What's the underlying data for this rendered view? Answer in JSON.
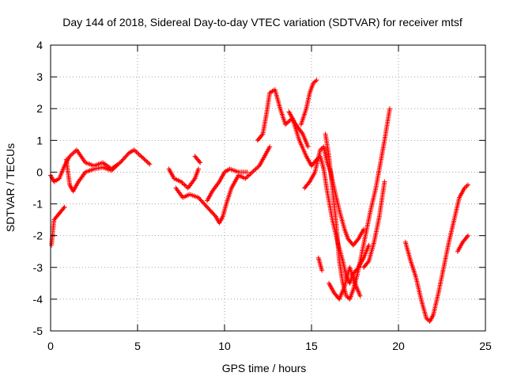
{
  "chart_data": {
    "type": "scatter",
    "title": "Day 144 of 2018, Sidereal Day-to-day VTEC variation (SDTVAR) for receiver mtsf",
    "xlabel": "GPS time / hours",
    "ylabel": "SDTVAR / TECUs",
    "xlim": [
      0,
      25
    ],
    "ylim": [
      -5,
      4
    ],
    "x_ticks": [
      0,
      5,
      10,
      15,
      20,
      25
    ],
    "y_ticks": [
      -5,
      -4,
      -3,
      -2,
      -1,
      0,
      1,
      2,
      3,
      4
    ],
    "grid": true,
    "legend": "none",
    "marker": "plus",
    "series": [
      {
        "color": "#ff0000",
        "tracks": [
          [
            [
              0.0,
              -0.1
            ],
            [
              0.2,
              -0.3
            ],
            [
              0.5,
              -0.2
            ],
            [
              0.8,
              0.2
            ],
            [
              1.1,
              0.5
            ],
            [
              1.5,
              0.7
            ],
            [
              2.0,
              0.3
            ],
            [
              2.5,
              0.2
            ],
            [
              3.0,
              0.3
            ],
            [
              3.5,
              0.1
            ],
            [
              4.0,
              0.3
            ],
            [
              4.5,
              0.6
            ],
            [
              4.8,
              0.7
            ],
            [
              5.2,
              0.5
            ],
            [
              5.7,
              0.25
            ]
          ],
          [
            [
              0.05,
              -2.3
            ],
            [
              0.2,
              -1.5
            ],
            [
              0.5,
              -1.3
            ],
            [
              0.8,
              -1.1
            ]
          ],
          [
            [
              0.9,
              0.4
            ],
            [
              1.1,
              -0.4
            ],
            [
              1.3,
              -0.6
            ],
            [
              1.6,
              -0.3
            ],
            [
              2.0,
              0.0
            ],
            [
              2.5,
              0.1
            ],
            [
              3.0,
              0.15
            ],
            [
              3.5,
              0.05
            ],
            [
              3.8,
              0.2
            ]
          ],
          [
            [
              6.8,
              0.1
            ],
            [
              7.1,
              -0.2
            ],
            [
              7.5,
              -0.3
            ],
            [
              7.9,
              -0.5
            ],
            [
              8.3,
              -0.2
            ],
            [
              8.5,
              0.1
            ]
          ],
          [
            [
              7.2,
              -0.5
            ],
            [
              7.6,
              -0.8
            ],
            [
              8.0,
              -0.7
            ],
            [
              8.5,
              -0.8
            ],
            [
              9.0,
              -1.1
            ],
            [
              9.5,
              -1.4
            ],
            [
              9.7,
              -1.6
            ],
            [
              9.9,
              -1.4
            ],
            [
              10.1,
              -1.0
            ],
            [
              10.4,
              -0.5
            ],
            [
              10.8,
              -0.1
            ],
            [
              11.2,
              -0.2
            ],
            [
              11.6,
              0.0
            ],
            [
              12.0,
              0.2
            ],
            [
              12.4,
              0.6
            ],
            [
              12.6,
              0.8
            ]
          ],
          [
            [
              9.0,
              -0.9
            ],
            [
              9.3,
              -0.6
            ],
            [
              9.7,
              -0.3
            ],
            [
              10.0,
              0.0
            ],
            [
              10.3,
              0.1
            ],
            [
              10.8,
              0.0
            ],
            [
              11.3,
              0.0
            ]
          ],
          [
            [
              8.3,
              0.5
            ],
            [
              8.6,
              0.3
            ]
          ],
          [
            [
              11.9,
              1.0
            ],
            [
              12.2,
              1.2
            ],
            [
              12.4,
              1.8
            ],
            [
              12.6,
              2.5
            ],
            [
              12.9,
              2.6
            ],
            [
              13.2,
              2.0
            ],
            [
              13.5,
              1.5
            ],
            [
              13.9,
              1.7
            ],
            [
              14.3,
              1.0
            ],
            [
              14.7,
              0.5
            ],
            [
              15.0,
              0.2
            ],
            [
              15.3,
              0.4
            ],
            [
              15.5,
              0.5
            ],
            [
              15.7,
              0.1
            ],
            [
              15.9,
              -0.6
            ],
            [
              16.2,
              -1.5
            ],
            [
              16.5,
              -2.2
            ],
            [
              16.8,
              -2.8
            ],
            [
              17.0,
              -3.3
            ],
            [
              17.2,
              -3.5
            ],
            [
              17.4,
              -3.2
            ],
            [
              17.7,
              -3.0
            ],
            [
              18.0,
              -2.7
            ],
            [
              18.3,
              -2.3
            ]
          ],
          [
            [
              14.4,
              1.5
            ],
            [
              14.7,
              2.0
            ],
            [
              14.9,
              2.5
            ],
            [
              15.1,
              2.8
            ],
            [
              15.3,
              2.9
            ]
          ],
          [
            [
              13.7,
              1.9
            ],
            [
              14.1,
              1.5
            ],
            [
              14.5,
              1.2
            ],
            [
              14.8,
              0.8
            ]
          ],
          [
            [
              14.6,
              -0.5
            ],
            [
              14.9,
              -0.3
            ],
            [
              15.2,
              0.0
            ],
            [
              15.5,
              0.7
            ],
            [
              15.7,
              0.8
            ],
            [
              15.9,
              0.3
            ],
            [
              16.1,
              0.0
            ],
            [
              16.3,
              -0.5
            ],
            [
              16.6,
              -1.2
            ],
            [
              16.9,
              -1.8
            ],
            [
              17.1,
              -2.1
            ],
            [
              17.4,
              -2.3
            ],
            [
              17.7,
              -2.1
            ],
            [
              18.0,
              -1.8
            ]
          ],
          [
            [
              15.4,
              -2.7
            ],
            [
              15.6,
              -3.1
            ]
          ],
          [
            [
              15.8,
              1.2
            ],
            [
              16.0,
              0.5
            ],
            [
              16.2,
              -0.5
            ],
            [
              16.4,
              -1.5
            ],
            [
              16.6,
              -2.8
            ],
            [
              16.8,
              -3.5
            ],
            [
              17.0,
              -3.9
            ],
            [
              17.2,
              -4.0
            ],
            [
              17.4,
              -3.7
            ],
            [
              17.6,
              -3.3
            ],
            [
              17.8,
              -2.8
            ],
            [
              18.1,
              -2.0
            ],
            [
              18.4,
              -1.2
            ],
            [
              18.7,
              -0.5
            ],
            [
              19.0,
              0.4
            ],
            [
              19.2,
              1.0
            ],
            [
              19.5,
              2.0
            ]
          ],
          [
            [
              16.0,
              -3.5
            ],
            [
              16.3,
              -3.8
            ],
            [
              16.6,
              -4.0
            ],
            [
              16.9,
              -3.6
            ],
            [
              17.2,
              -3.0
            ],
            [
              17.5,
              -3.5
            ],
            [
              17.8,
              -3.9
            ]
          ],
          [
            [
              18.0,
              -3.0
            ],
            [
              18.3,
              -2.8
            ],
            [
              18.6,
              -2.2
            ],
            [
              18.9,
              -1.4
            ],
            [
              19.2,
              -0.3
            ]
          ],
          [
            [
              20.4,
              -2.2
            ],
            [
              20.7,
              -2.8
            ],
            [
              21.0,
              -3.3
            ],
            [
              21.3,
              -4.0
            ],
            [
              21.6,
              -4.6
            ],
            [
              21.8,
              -4.7
            ],
            [
              22.0,
              -4.5
            ],
            [
              22.3,
              -3.8
            ],
            [
              22.6,
              -3.0
            ],
            [
              22.9,
              -2.2
            ],
            [
              23.2,
              -1.5
            ],
            [
              23.5,
              -0.8
            ],
            [
              23.8,
              -0.5
            ],
            [
              24.0,
              -0.4
            ]
          ],
          [
            [
              23.4,
              -2.5
            ],
            [
              23.7,
              -2.2
            ],
            [
              24.0,
              -2.0
            ]
          ]
        ]
      }
    ]
  }
}
